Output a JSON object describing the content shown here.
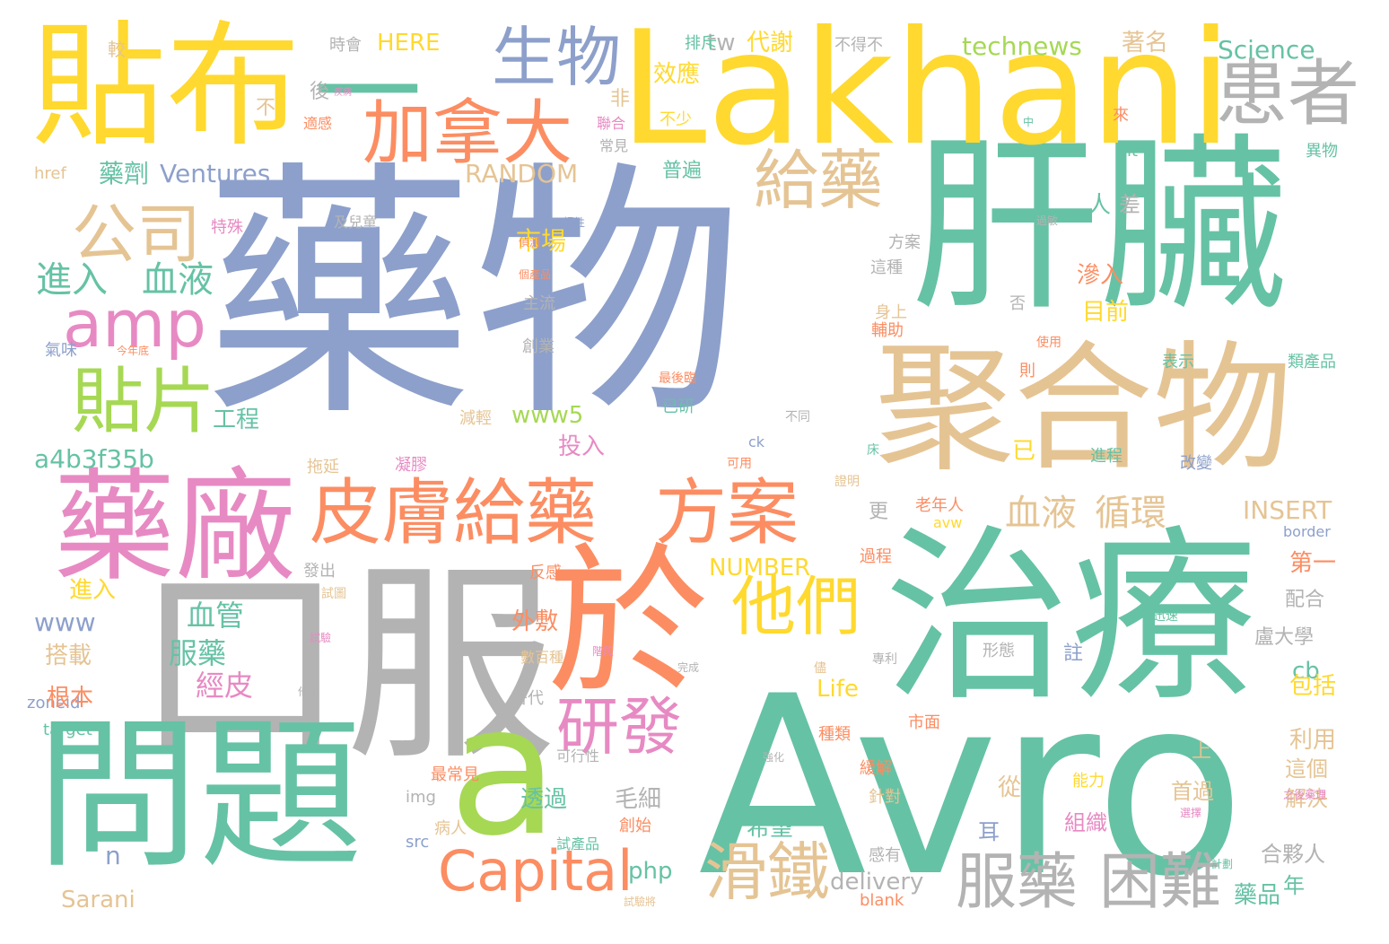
{
  "palette": {
    "gray": "#b3b3b3",
    "green": "#66c2a5",
    "orange": "#fc8d62",
    "blue": "#8da0cb",
    "pink": "#e78ac3",
    "lime": "#a6d854",
    "yellow": "#ffd92f",
    "tan": "#e5c494"
  },
  "words": [
    {
      "text": "藥物",
      "color": "blue"
    },
    {
      "text": "肝臟",
      "color": "green"
    },
    {
      "text": "Avro",
      "color": "green"
    },
    {
      "text": "Lakhani",
      "color": "yellow"
    },
    {
      "text": "口服",
      "color": "gray"
    },
    {
      "text": "治療",
      "color": "green"
    },
    {
      "text": "聚合物",
      "color": "tan"
    },
    {
      "text": "問題",
      "color": "green"
    },
    {
      "text": "於",
      "color": "orange"
    },
    {
      "text": "a",
      "color": "lime"
    },
    {
      "text": "貼布",
      "color": "yellow"
    },
    {
      "text": "一",
      "color": "green"
    },
    {
      "text": "藥廠",
      "color": "pink"
    },
    {
      "text": "生物",
      "color": "blue"
    },
    {
      "text": "患者",
      "color": "gray"
    },
    {
      "text": "加拿大",
      "color": "orange"
    },
    {
      "text": "皮膚給藥",
      "color": "orange"
    },
    {
      "text": "方案",
      "color": "orange"
    },
    {
      "text": "公司",
      "color": "tan"
    },
    {
      "text": "amp",
      "color": "pink"
    },
    {
      "text": "給藥",
      "color": "tan"
    },
    {
      "text": "貼片",
      "color": "lime"
    },
    {
      "text": "他們",
      "color": "yellow"
    },
    {
      "text": "研發",
      "color": "pink"
    },
    {
      "text": "Capital",
      "color": "orange"
    },
    {
      "text": "滑鐵",
      "color": "tan"
    },
    {
      "text": "服藥",
      "color": "gray"
    },
    {
      "text": "困難",
      "color": "gray"
    },
    {
      "text": "進入",
      "color": "green"
    },
    {
      "text": "血液",
      "color": "green"
    },
    {
      "text": "血液",
      "color": "tan"
    },
    {
      "text": "循環",
      "color": "tan"
    },
    {
      "text": "藥劑",
      "color": "green"
    },
    {
      "text": "Ventures",
      "color": "blue"
    },
    {
      "text": "a4b3f35b",
      "color": "green"
    },
    {
      "text": "RANDOM",
      "color": "tan"
    },
    {
      "text": "市場",
      "color": "yellow"
    },
    {
      "text": "technews",
      "color": "lime"
    },
    {
      "text": "Science",
      "color": "green"
    },
    {
      "text": "HERE",
      "color": "yellow"
    },
    {
      "text": "tw",
      "color": "gray"
    },
    {
      "text": "代謝",
      "color": "yellow"
    },
    {
      "text": "效應",
      "color": "yellow"
    },
    {
      "text": "著名",
      "color": "tan"
    },
    {
      "text": "www5",
      "color": "lime"
    },
    {
      "text": "投入",
      "color": "pink"
    },
    {
      "text": "delivery",
      "color": "gray"
    },
    {
      "text": "Sarani",
      "color": "tan"
    },
    {
      "text": "www",
      "color": "blue"
    },
    {
      "text": "INSERT",
      "color": "tan"
    },
    {
      "text": "NUMBER",
      "color": "yellow"
    },
    {
      "text": "Life",
      "color": "yellow"
    },
    {
      "text": "php",
      "color": "green"
    },
    {
      "text": "cb",
      "color": "green"
    },
    {
      "text": "n",
      "color": "blue"
    },
    {
      "text": "href",
      "color": "tan"
    },
    {
      "text": "zoneid",
      "color": "blue"
    },
    {
      "text": "target",
      "color": "green"
    },
    {
      "text": "src",
      "color": "blue"
    },
    {
      "text": "img",
      "color": "gray"
    },
    {
      "text": "blank",
      "color": "orange"
    },
    {
      "text": "alt",
      "color": "green"
    },
    {
      "text": "ck",
      "color": "blue"
    },
    {
      "text": "border",
      "color": "blue"
    },
    {
      "text": "avw",
      "color": "yellow"
    },
    {
      "text": "血管",
      "color": "green"
    },
    {
      "text": "服藥",
      "color": "green"
    },
    {
      "text": "經皮",
      "color": "pink"
    },
    {
      "text": "外敷",
      "color": "orange"
    },
    {
      "text": "毛細",
      "color": "gray"
    },
    {
      "text": "透過",
      "color": "green"
    },
    {
      "text": "希望",
      "color": "green"
    },
    {
      "text": "工程",
      "color": "green"
    },
    {
      "text": "根本",
      "color": "orange"
    },
    {
      "text": "搭載",
      "color": "tan"
    },
    {
      "text": "進入",
      "color": "yellow"
    },
    {
      "text": "人",
      "color": "green"
    },
    {
      "text": "差",
      "color": "gray"
    },
    {
      "text": "滲入",
      "color": "orange"
    },
    {
      "text": "目前",
      "color": "yellow"
    },
    {
      "text": "更",
      "color": "gray"
    },
    {
      "text": "第一",
      "color": "orange"
    },
    {
      "text": "配合",
      "color": "gray"
    },
    {
      "text": "盧大學",
      "color": "gray"
    },
    {
      "text": "包括",
      "color": "yellow"
    },
    {
      "text": "利用",
      "color": "tan"
    },
    {
      "text": "這個",
      "color": "tan"
    },
    {
      "text": "首過",
      "color": "tan"
    },
    {
      "text": "解決",
      "color": "tan"
    },
    {
      "text": "合夥人",
      "color": "gray"
    },
    {
      "text": "藥品",
      "color": "green"
    },
    {
      "text": "組織",
      "color": "pink"
    },
    {
      "text": "從",
      "color": "tan"
    },
    {
      "text": "耳",
      "color": "blue"
    },
    {
      "text": "普遍",
      "color": "green"
    },
    {
      "text": "已",
      "color": "yellow"
    },
    {
      "text": "非",
      "color": "tan"
    },
    {
      "text": "後",
      "color": "gray"
    },
    {
      "text": "不",
      "color": "tan"
    },
    {
      "text": "較",
      "color": "tan"
    },
    {
      "text": "時會",
      "color": "gray"
    },
    {
      "text": "排斥",
      "color": "green"
    },
    {
      "text": "不得不",
      "color": "gray"
    },
    {
      "text": "特殊",
      "color": "pink"
    },
    {
      "text": "氣味",
      "color": "blue"
    },
    {
      "text": "主流",
      "color": "gray"
    },
    {
      "text": "創業",
      "color": "gray"
    },
    {
      "text": "方案",
      "color": "gray"
    },
    {
      "text": "這種",
      "color": "gray"
    },
    {
      "text": "輔助",
      "color": "orange"
    },
    {
      "text": "身上",
      "color": "tan"
    },
    {
      "text": "已研",
      "color": "green"
    },
    {
      "text": "減輕",
      "color": "tan"
    },
    {
      "text": "拖延",
      "color": "tan"
    },
    {
      "text": "凝膠",
      "color": "pink"
    },
    {
      "text": "發出",
      "color": "gray"
    },
    {
      "text": "反感",
      "color": "orange"
    },
    {
      "text": "過程",
      "color": "orange"
    },
    {
      "text": "老年人",
      "color": "orange"
    },
    {
      "text": "表示",
      "color": "green"
    },
    {
      "text": "類產品",
      "color": "green"
    },
    {
      "text": "改變",
      "color": "blue"
    },
    {
      "text": "進程",
      "color": "green"
    },
    {
      "text": "形態",
      "color": "gray"
    },
    {
      "text": "註",
      "color": "blue"
    },
    {
      "text": "年",
      "color": "green"
    },
    {
      "text": "替代",
      "color": "gray"
    },
    {
      "text": "數百種",
      "color": "tan"
    },
    {
      "text": "可行性",
      "color": "gray"
    },
    {
      "text": "最常見",
      "color": "orange"
    },
    {
      "text": "病人",
      "color": "tan"
    },
    {
      "text": "試產品",
      "color": "green"
    },
    {
      "text": "創始",
      "color": "orange"
    },
    {
      "text": "緩解",
      "color": "orange"
    },
    {
      "text": "能力",
      "color": "yellow"
    },
    {
      "text": "針對",
      "color": "tan"
    },
    {
      "text": "種類",
      "color": "orange"
    },
    {
      "text": "市面",
      "color": "orange"
    },
    {
      "text": "感有",
      "color": "gray"
    },
    {
      "text": "上",
      "color": "tan"
    },
    {
      "text": "則",
      "color": "orange"
    },
    {
      "text": "否",
      "color": "gray"
    },
    {
      "text": "來",
      "color": "orange"
    },
    {
      "text": "異物",
      "color": "green"
    },
    {
      "text": "使用",
      "color": "orange"
    },
    {
      "text": "不少",
      "color": "yellow"
    },
    {
      "text": "聯合",
      "color": "pink"
    },
    {
      "text": "常見",
      "color": "gray"
    },
    {
      "text": "適感",
      "color": "orange"
    },
    {
      "text": "及兒童",
      "color": "gray"
    },
    {
      "text": "慢性",
      "color": "blue"
    },
    {
      "text": "過敏",
      "color": "gray"
    },
    {
      "text": "可用",
      "color": "orange"
    },
    {
      "text": "證明",
      "color": "tan"
    },
    {
      "text": "迅速",
      "color": "green"
    },
    {
      "text": "儘",
      "color": "tan"
    },
    {
      "text": "完成",
      "color": "gray"
    },
    {
      "text": "專利",
      "color": "gray"
    },
    {
      "text": "試驗",
      "color": "pink"
    },
    {
      "text": "試圖",
      "color": "tan"
    },
    {
      "text": "他定",
      "color": "gray"
    },
    {
      "text": "床",
      "color": "green"
    },
    {
      "text": "不同",
      "color": "gray"
    },
    {
      "text": "最後臨",
      "color": "orange"
    },
    {
      "text": "今年底",
      "color": "orange"
    },
    {
      "text": "中",
      "color": "green"
    },
    {
      "text": "疾病",
      "color": "pink"
    },
    {
      "text": "個產品",
      "color": "orange"
    },
    {
      "text": "偵測",
      "color": "orange"
    },
    {
      "text": "階段",
      "color": "pink"
    },
    {
      "text": "計劃",
      "color": "green"
    },
    {
      "text": "試驗將",
      "color": "tan"
    },
    {
      "text": "之後藥理",
      "color": "pink"
    },
    {
      "text": "選擇",
      "color": "pink"
    },
    {
      "text": "強化",
      "color": "gray"
    }
  ]
}
